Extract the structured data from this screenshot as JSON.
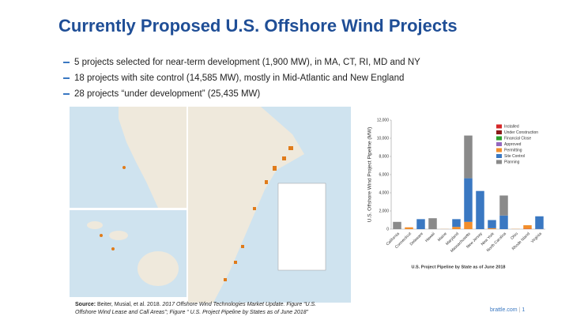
{
  "header": {
    "title": "Currently Proposed U.S. Offshore Wind Projects"
  },
  "bullets": [
    "5 projects selected for near-term development (1,900 MW), in MA, CT, RI, MD and NY",
    "18 projects with site control (14,585 MW), mostly in Mid-Atlantic and New England",
    "28 projects “under development” (25,435 MW)"
  ],
  "source": {
    "label": "Source:",
    "text": "Beiter, Musial, et al. 2018.",
    "italic": "2017 Offshore Wind Technologies Market Update. Figure “U.S. Offshore Wind Lease and Call Areas”; Figure “ U.S. Project Pipeline by States as of June 2018”"
  },
  "footer": {
    "site": "brattle.com",
    "page": "1"
  },
  "chart_data": {
    "type": "stacked_bar",
    "title": "U.S. Project Pipeline by State as of June 2018",
    "y_label": "U.S. Offshore Wind Project Pipeline (MW)",
    "categories": [
      "California",
      "Connecticut",
      "Delaware",
      "Hawaii",
      "Maine",
      "Maryland",
      "Massachusetts",
      "New Jersey",
      "New York",
      "North Carolina",
      "Ohio",
      "Rhode Island",
      "Virginia"
    ],
    "series": [
      {
        "name": "Installed",
        "color": "#d62728",
        "values": [
          null,
          null,
          null,
          null,
          null,
          null,
          null,
          null,
          null,
          null,
          null,
          30,
          12
        ]
      },
      {
        "name": "Under Construction",
        "color": "#8c1a1a",
        "values": [
          null,
          null,
          null,
          null,
          null,
          null,
          null,
          null,
          null,
          null,
          null,
          null,
          null
        ]
      },
      {
        "name": "Financial Close",
        "color": "#2ca02c",
        "values": [
          null,
          null,
          null,
          null,
          null,
          null,
          null,
          null,
          null,
          null,
          null,
          null,
          null
        ]
      },
      {
        "name": "Approved",
        "color": "#9467bd",
        "values": [
          null,
          null,
          null,
          null,
          null,
          null,
          null,
          null,
          null,
          null,
          null,
          null,
          null
        ]
      },
      {
        "name": "Permitting",
        "color": "#f28e2b",
        "values": [
          null,
          200,
          null,
          null,
          12,
          250,
          800,
          null,
          100,
          null,
          20,
          400,
          null
        ]
      },
      {
        "name": "Site Control",
        "color": "#3a78c2",
        "values": [
          null,
          null,
          1100,
          null,
          null,
          850,
          4800,
          4200,
          900,
          1500,
          null,
          null,
          1400
        ]
      },
      {
        "name": "Planning",
        "color": "#8a8a8a",
        "values": [
          800,
          null,
          null,
          1200,
          null,
          null,
          4700,
          null,
          null,
          2200,
          null,
          null,
          null
        ]
      }
    ],
    "ylim": [
      0,
      12000
    ],
    "yticks": [
      0,
      {
        "value": 2000,
        "label": "2,000"
      },
      {
        "value": 4000,
        "label": "4,000"
      },
      {
        "value": 6000,
        "label": "6,000"
      },
      {
        "value": 8000,
        "label": "8,000"
      },
      {
        "value": 10000,
        "label": "10,000"
      },
      {
        "value": 12000,
        "label": "12,000"
      }
    ],
    "grid": false,
    "legend": "top-right"
  }
}
